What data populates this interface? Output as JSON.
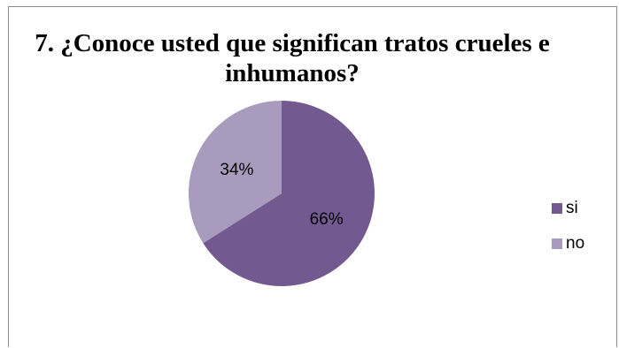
{
  "chart_data": {
    "type": "pie",
    "title": "7. ¿Conoce usted que significan tratos crueles e inhumanos?",
    "categories": [
      "si",
      "no"
    ],
    "values": [
      66,
      34
    ],
    "value_labels": [
      "66%",
      "34%"
    ],
    "colors": [
      "#725990",
      "#a99bbd"
    ],
    "legend_position": "right"
  }
}
